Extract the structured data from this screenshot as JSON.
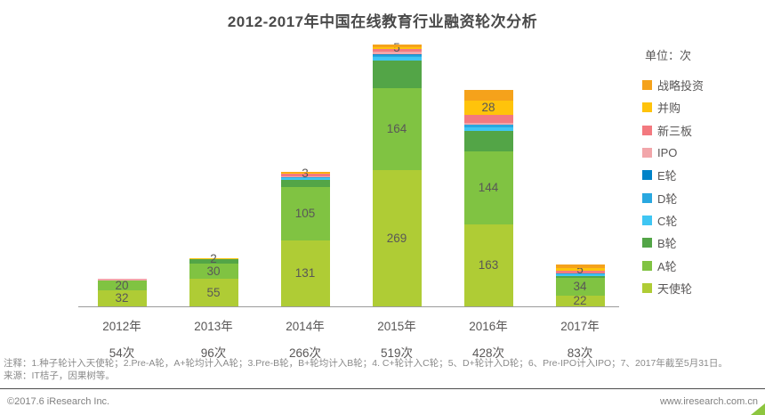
{
  "title": "2012-2017年中国在线教育行业融资轮次分析",
  "legend": {
    "unit_label": "单位：次",
    "items": [
      {
        "label": "战略投资",
        "color": "#F5A21B"
      },
      {
        "label": "并购",
        "color": "#FFC30B"
      },
      {
        "label": "新三板",
        "color": "#F3797F"
      },
      {
        "label": "IPO",
        "color": "#F2A6AA"
      },
      {
        "label": "E轮",
        "color": "#0082C8"
      },
      {
        "label": "D轮",
        "color": "#29A8E0"
      },
      {
        "label": "C轮",
        "color": "#3FC6F3"
      },
      {
        "label": "B轮",
        "color": "#53A547"
      },
      {
        "label": "A轮",
        "color": "#80C342"
      },
      {
        "label": "天使轮",
        "color": "#AFCC35"
      }
    ]
  },
  "chart_data": {
    "type": "bar",
    "stacked": true,
    "title": "2012-2017年中国在线教育行业融资轮次分析",
    "unit": "次",
    "categories": [
      "2012年",
      "2013年",
      "2014年",
      "2015年",
      "2016年",
      "2017年"
    ],
    "category_totals": [
      54,
      96,
      266,
      519,
      428,
      83
    ],
    "category_total_labels": [
      "54次",
      "96次",
      "266次",
      "519次",
      "428次",
      "83次"
    ],
    "series_note": "series listed bottom-to-top of stack; labeled values visible on chart: 天使轮(32,55,131,269,163,22), A轮(20,30,105,164,144,34), 并购(2,3,5,28,5); other segment values estimated from bar heights",
    "series": [
      {
        "name": "天使轮",
        "color": "#AFCC35",
        "values": [
          32,
          55,
          131,
          269,
          163,
          22
        ],
        "show_labels": true
      },
      {
        "name": "A轮",
        "color": "#80C342",
        "values": [
          20,
          30,
          105,
          164,
          144,
          34
        ],
        "show_labels": true
      },
      {
        "name": "B轮",
        "color": "#53A547",
        "values": [
          0,
          9,
          14,
          53,
          40,
          4
        ],
        "show_labels": false
      },
      {
        "name": "C轮",
        "color": "#3FC6F3",
        "values": [
          0,
          0,
          4,
          7,
          7,
          3
        ],
        "show_labels": false
      },
      {
        "name": "D轮",
        "color": "#29A8E0",
        "values": [
          0,
          0,
          2,
          5,
          6,
          3
        ],
        "show_labels": false
      },
      {
        "name": "E轮",
        "color": "#0082C8",
        "values": [
          0,
          0,
          0,
          2,
          0,
          0
        ],
        "show_labels": false
      },
      {
        "name": "IPO",
        "color": "#F2A6AA",
        "values": [
          2,
          0,
          1,
          4,
          3,
          0
        ],
        "show_labels": false
      },
      {
        "name": "新三板",
        "color": "#F3797F",
        "values": [
          0,
          0,
          5,
          5,
          17,
          4
        ],
        "show_labels": false
      },
      {
        "name": "并购",
        "color": "#FFC30B",
        "values": [
          0,
          2,
          3,
          5,
          28,
          5
        ],
        "show_labels": true
      },
      {
        "name": "战略投资",
        "color": "#F5A21B",
        "values": [
          0,
          0,
          1,
          5,
          20,
          8
        ],
        "show_labels": false
      }
    ],
    "legend_position": "right",
    "grid": false
  },
  "notes": {
    "line1": "注释：1.种子轮计入天使轮；2.Pre-A轮，A+轮均计入A轮；3.Pre-B轮，B+轮均计入B轮；4. C+轮计入C轮；5、D+轮计入D轮；6、Pre-IPO计入IPO；7、2017年截至5月31日。",
    "line2": "来源：IT桔子，因果树等。"
  },
  "footer": {
    "left": "©2017.6 iResearch Inc.",
    "right": "www.iresearch.com.cn"
  }
}
